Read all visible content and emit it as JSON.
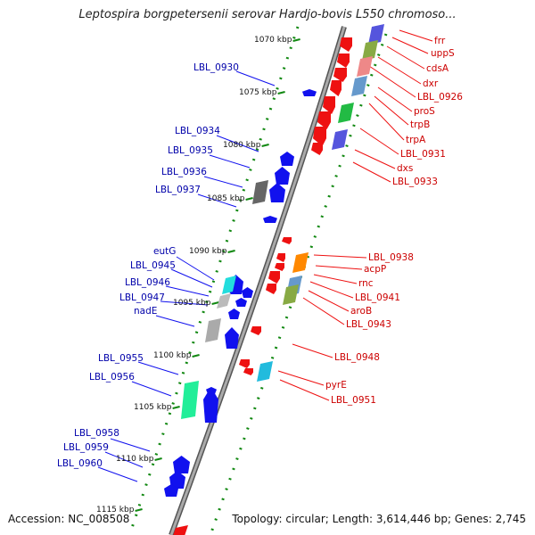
{
  "title": "Leptospira borgpetersenii serovar Hardjo-bovis L550 chromoso...",
  "footer": {
    "accession": "Accession: NC_008508",
    "topology": "Topology: circular; Length: 3,614,446 bp; Genes: 2,745"
  },
  "scale_labels": [
    "1070 kbp",
    "1075 kbp",
    "1080 kbp",
    "1085 kbp",
    "1090 kbp",
    "1095 kbp",
    "1100 kbp",
    "1105 kbp",
    "1110 kbp",
    "1115 kbp"
  ],
  "left_labels": [
    "LBL_0930",
    "LBL_0934",
    "LBL_0935",
    "LBL_0936",
    "LBL_0937",
    "eutG",
    "LBL_0945",
    "LBL_0946",
    "LBL_0947",
    "nadE",
    "LBL_0955",
    "LBL_0956",
    "LBL_0958",
    "LBL_0959",
    "LBL_0960"
  ],
  "right_labels": [
    "frr",
    "uppS",
    "cdsA",
    "dxr",
    "LBL_0926",
    "proS",
    "trpB",
    "trpA",
    "LBL_0931",
    "dxs",
    "LBL_0933",
    "LBL_0938",
    "acpP",
    "rnc",
    "LBL_0941",
    "aroB",
    "LBL_0943",
    "LBL_0948",
    "pyrE",
    "LBL_0951"
  ],
  "colors": {
    "reverse_strand": "#ee1111",
    "forward_strand": "#1111ee",
    "left_label": "#0000aa",
    "right_label": "#cc0000",
    "backbone": "#888888",
    "tick": "#118811"
  }
}
